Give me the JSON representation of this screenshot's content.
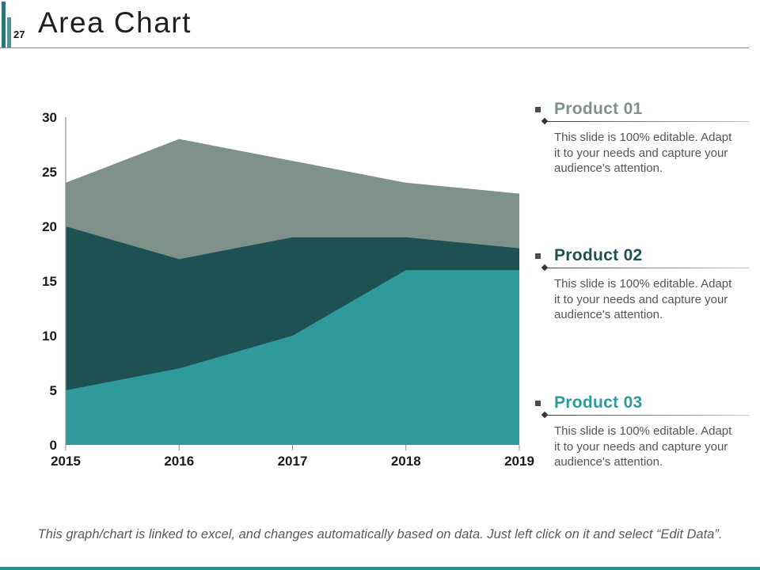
{
  "slide": {
    "page_number": "27",
    "title": "Area Chart",
    "footer": "This graph/chart is linked to excel, and changes automatically based on data. Just left click on it and select “Edit Data”."
  },
  "legend": {
    "items": [
      {
        "label": "Product 01",
        "color": "#7E918A",
        "description": "This slide is 100% editable. Adapt it to your needs and capture your audience's attention."
      },
      {
        "label": "Product 02",
        "color": "#1E5153",
        "description": "This slide is 100% editable. Adapt it to your needs and capture your audience's attention."
      },
      {
        "label": "Product 03",
        "color": "#2E9A9B",
        "description": "This slide is 100% editable. Adapt it to your needs and capture your audience's attention."
      }
    ]
  },
  "chart_data": {
    "type": "area",
    "title": "",
    "x": [
      "2015",
      "2016",
      "2017",
      "2018",
      "2019"
    ],
    "series": [
      {
        "name": "Product 01",
        "color": "#7E918A",
        "values": [
          24,
          28,
          26,
          24,
          23
        ]
      },
      {
        "name": "Product 02",
        "color": "#1E5153",
        "values": [
          20,
          17,
          19,
          19,
          18
        ]
      },
      {
        "name": "Product 03",
        "color": "#2E9A9B",
        "values": [
          5,
          7,
          10,
          16,
          16
        ]
      }
    ],
    "ylim": [
      0,
      30
    ],
    "yticks": [
      0,
      5,
      10,
      15,
      20,
      25,
      30
    ],
    "grid": false,
    "legend_position": "right",
    "layering": "series drawn back-to-front (Product 01 behind, Product 03 in front)"
  }
}
